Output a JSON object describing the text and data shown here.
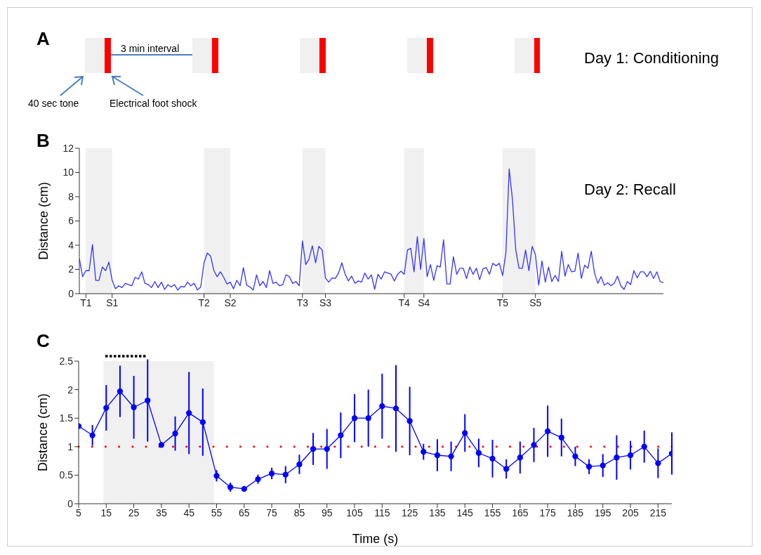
{
  "chart_data": [
    {
      "type": "other",
      "title": "A",
      "annotations": [
        "3 min interval",
        "40 sec tone",
        "Electrical foot shock",
        "Day 1: Conditioning"
      ]
    },
    {
      "type": "line",
      "title": "B",
      "ylabel": "Distance (cm)",
      "color": "#3333ff",
      "ylim": [
        0,
        12
      ],
      "yticks": [
        0,
        2,
        4,
        6,
        8,
        10,
        12
      ],
      "bands": [
        {
          "axis": "x",
          "from": "T1",
          "to": "S1",
          "color": "#f0f0f0"
        },
        {
          "axis": "x",
          "from": "T2",
          "to": "S2",
          "color": "#f0f0f0"
        },
        {
          "axis": "x",
          "from": "T3",
          "to": "S3",
          "color": "#f0f0f0"
        },
        {
          "axis": "x",
          "from": "T4",
          "to": "S4",
          "color": "#f0f0f0"
        },
        {
          "axis": "x",
          "from": "T5",
          "to": "S5",
          "color": "#f0f0f0"
        }
      ],
      "categories": [
        null,
        null,
        "T1",
        null,
        null,
        null,
        null,
        null,
        null,
        null,
        "S1",
        null,
        null,
        null,
        null,
        null,
        null,
        null,
        null,
        null,
        null,
        null,
        null,
        null,
        null,
        null,
        null,
        null,
        null,
        null,
        null,
        null,
        null,
        null,
        null,
        null,
        null,
        null,
        "T2",
        null,
        null,
        null,
        null,
        null,
        null,
        null,
        "S2",
        null,
        null,
        null,
        null,
        null,
        null,
        null,
        null,
        null,
        null,
        null,
        null,
        null,
        null,
        null,
        null,
        null,
        null,
        null,
        null,
        null,
        "T3",
        null,
        null,
        null,
        null,
        null,
        null,
        "S3",
        null,
        null,
        null,
        null,
        null,
        null,
        null,
        null,
        null,
        null,
        null,
        null,
        null,
        null,
        null,
        null,
        null,
        null,
        null,
        null,
        null,
        null,
        null,
        "T4",
        null,
        null,
        null,
        null,
        null,
        "S4",
        null,
        null,
        null,
        null,
        null,
        null,
        null,
        null,
        null,
        null,
        null,
        null,
        null,
        null,
        null,
        null,
        null,
        null,
        null,
        null,
        null,
        null,
        null,
        "T5",
        null,
        null,
        null,
        null,
        null,
        null,
        null,
        null,
        null,
        "S5",
        null,
        null,
        null,
        null,
        null,
        null,
        null,
        null,
        null,
        null,
        null,
        null,
        null,
        null,
        null,
        null,
        null,
        null,
        null,
        null,
        null,
        null,
        null,
        null,
        null,
        null,
        null,
        null,
        null,
        null,
        null,
        null,
        null,
        null,
        null,
        null,
        null,
        null,
        null
      ],
      "annotations": [
        "Day 2: Recall"
      ],
      "values": [
        2.9,
        1.4,
        1.9,
        1.9,
        4.05,
        1.1,
        1.1,
        2.2,
        1.9,
        2.6,
        1.1,
        0.4,
        0.65,
        0.5,
        0.85,
        0.75,
        0.65,
        1.35,
        1.2,
        1.8,
        0.85,
        0.75,
        0.5,
        1.0,
        0.5,
        0.95,
        0.35,
        0.75,
        0.55,
        0.75,
        0.3,
        0.6,
        0.55,
        0.95,
        0.65,
        0.85,
        0.3,
        0.55,
        2.55,
        3.35,
        3.1,
        1.9,
        1.4,
        1.8,
        1.35,
        0.8,
        0.95,
        0.4,
        1.1,
        0.65,
        2.15,
        0.7,
        0.55,
        0.3,
        1.55,
        0.65,
        1.0,
        0.5,
        1.9,
        0.85,
        0.95,
        0.65,
        0.75,
        1.55,
        1.4,
        0.85,
        1.0,
        0.65,
        4.35,
        2.4,
        2.85,
        3.95,
        2.55,
        3.9,
        3.6,
        1.3,
        0.95,
        1.3,
        1.25,
        1.7,
        2.55,
        1.6,
        1.05,
        1.45,
        0.85,
        1.05,
        0.95,
        1.7,
        1.2,
        1.55,
        0.35,
        1.6,
        1.2,
        1.8,
        1.7,
        1.6,
        1.05,
        1.6,
        1.85,
        1.6,
        3.6,
        3.75,
        1.8,
        4.7,
        2.0,
        4.55,
        1.4,
        2.4,
        1.1,
        2.3,
        2.2,
        4.45,
        0.8,
        0.8,
        3.05,
        1.6,
        2.1,
        2.1,
        1.25,
        2.2,
        1.6,
        2.1,
        1.15,
        2.05,
        2.15,
        1.6,
        2.5,
        2.3,
        2.5,
        1.5,
        3.4,
        10.3,
        7.75,
        3.6,
        2.1,
        2.1,
        3.6,
        1.9,
        3.9,
        3.2,
        0.7,
        2.7,
        0.95,
        2.2,
        1.0,
        1.5,
        1.0,
        3.5,
        1.45,
        2.4,
        1.8,
        1.85,
        3.35,
        1.25,
        2.35,
        2.1,
        3.5,
        1.7,
        0.85,
        1.4,
        0.7,
        0.9,
        0.65,
        0.85,
        1.45,
        0.65,
        0.35,
        1.0,
        0.75,
        1.9,
        1.3,
        1.8,
        1.8,
        1.4,
        1.85,
        1.25,
        1.8,
        1.0,
        0.9
      ]
    },
    {
      "type": "line",
      "title": "C",
      "xlabel": "Time (s)",
      "ylabel": "Distance (cm)",
      "color": "#0000ff",
      "marker": "circle",
      "xlim": [
        5,
        220
      ],
      "ylim": [
        0,
        2.5
      ],
      "xticks": [
        5,
        15,
        25,
        35,
        45,
        55,
        65,
        75,
        85,
        95,
        105,
        115,
        125,
        135,
        145,
        155,
        165,
        175,
        185,
        195,
        205,
        215
      ],
      "yticks": [
        0,
        0.5,
        1,
        1.5,
        2,
        2.5
      ],
      "ref_lines": [
        {
          "axis": "y",
          "value": 1,
          "color": "#ff0000",
          "line_style": "dotted"
        }
      ],
      "bands": [
        {
          "axis": "x",
          "from": 14,
          "to": 54,
          "color": "#f0f0f0"
        }
      ],
      "x": [
        5,
        10,
        15,
        20,
        25,
        30,
        35,
        40,
        45,
        50,
        55,
        60,
        65,
        70,
        75,
        80,
        85,
        90,
        95,
        100,
        105,
        110,
        115,
        120,
        125,
        130,
        135,
        140,
        145,
        150,
        155,
        160,
        165,
        170,
        175,
        180,
        185,
        190,
        195,
        200,
        205,
        210,
        215,
        220
      ],
      "values": [
        1.36,
        1.2,
        1.68,
        1.97,
        1.69,
        1.81,
        1.03,
        1.23,
        1.59,
        1.43,
        0.49,
        0.29,
        0.26,
        0.43,
        0.53,
        0.51,
        0.69,
        0.96,
        0.96,
        1.2,
        1.5,
        1.5,
        1.71,
        1.67,
        1.45,
        0.91,
        0.85,
        0.83,
        1.24,
        0.89,
        0.79,
        0.61,
        0.81,
        1.03,
        1.27,
        1.16,
        0.83,
        0.65,
        0.67,
        0.81,
        0.85,
        1.0,
        0.71,
        0.88
      ],
      "errors": [
        null,
        0.18,
        0.4,
        0.45,
        0.55,
        0.72,
        null,
        0.3,
        0.72,
        0.59,
        0.1,
        0.08,
        null,
        0.08,
        0.1,
        0.15,
        0.17,
        0.28,
        0.35,
        0.4,
        0.42,
        0.5,
        0.57,
        0.76,
        0.6,
        0.14,
        0.28,
        0.26,
        0.33,
        0.25,
        0.33,
        0.17,
        0.28,
        0.3,
        0.45,
        0.33,
        0.17,
        0.13,
        0.2,
        0.39,
        0.25,
        0.28,
        0.26,
        0.37
      ]
    }
  ]
}
